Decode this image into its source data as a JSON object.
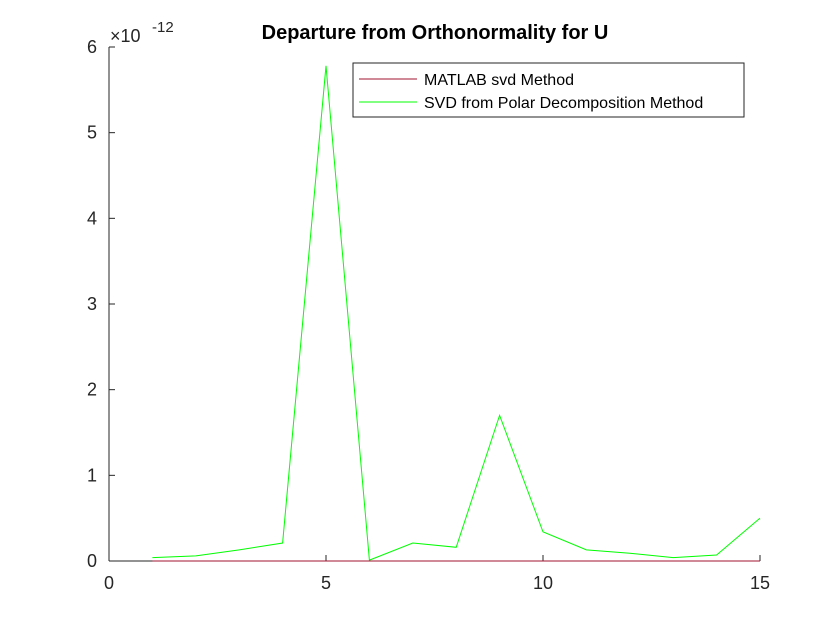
{
  "chart_data": {
    "type": "line",
    "title": "Departure from Orthonormality for U",
    "xlabel": "",
    "ylabel": "",
    "xlim": [
      0,
      15
    ],
    "ylim": [
      0,
      6
    ],
    "x_ticks": [
      "0",
      "5",
      "10",
      "15"
    ],
    "y_ticks": [
      "0",
      "1",
      "2",
      "3",
      "4",
      "5",
      "6"
    ],
    "y_exponent": {
      "base": "10",
      "power": "-12",
      "prefix": "×"
    },
    "grid": false,
    "legend_position": "top-right",
    "series": [
      {
        "name": "MATLAB svd Method",
        "color": "#a2142f",
        "x": [
          1,
          2,
          3,
          4,
          5,
          6,
          7,
          8,
          9,
          10,
          11,
          12,
          13,
          14,
          15
        ],
        "y": [
          0,
          0,
          0,
          0,
          0,
          0,
          0,
          0,
          0,
          0,
          0,
          0,
          0,
          0,
          0
        ]
      },
      {
        "name": "SVD from Polar Decomposition Method",
        "color": "#00ff00",
        "x": [
          1,
          2,
          3,
          4,
          5,
          6,
          7,
          8,
          9,
          10,
          11,
          12,
          13,
          14,
          15
        ],
        "y": [
          0.04,
          0.06,
          0.13,
          0.21,
          5.78,
          0.01,
          0.21,
          0.16,
          1.7,
          0.34,
          0.13,
          0.09,
          0.04,
          0.07,
          0.5
        ]
      }
    ]
  }
}
